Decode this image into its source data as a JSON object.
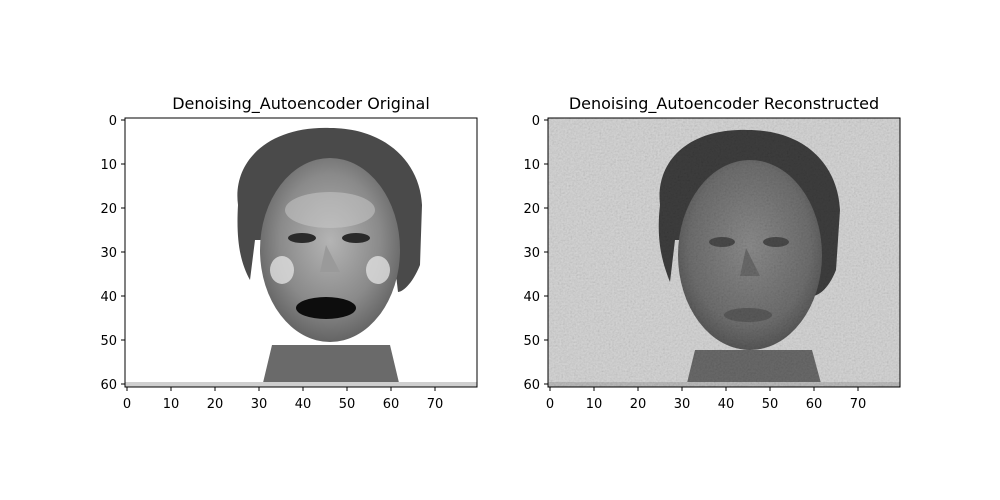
{
  "panels": [
    {
      "title": "Denoising_Autoencoder Original",
      "image": "grayscale face photo (original)",
      "x_range": [
        0,
        79
      ],
      "y_range": [
        0,
        60
      ],
      "x_ticks": [
        "0",
        "10",
        "20",
        "30",
        "40",
        "50",
        "60",
        "70"
      ],
      "y_ticks": [
        "0",
        "10",
        "20",
        "30",
        "40",
        "50",
        "60"
      ]
    },
    {
      "title": "Denoising_Autoencoder Reconstructed",
      "image": "grayscale face (noisy reconstruction)",
      "x_range": [
        0,
        79
      ],
      "y_range": [
        0,
        60
      ],
      "x_ticks": [
        "0",
        "10",
        "20",
        "30",
        "40",
        "50",
        "60",
        "70"
      ],
      "y_ticks": [
        "0",
        "10",
        "20",
        "30",
        "40",
        "50",
        "60"
      ]
    }
  ]
}
